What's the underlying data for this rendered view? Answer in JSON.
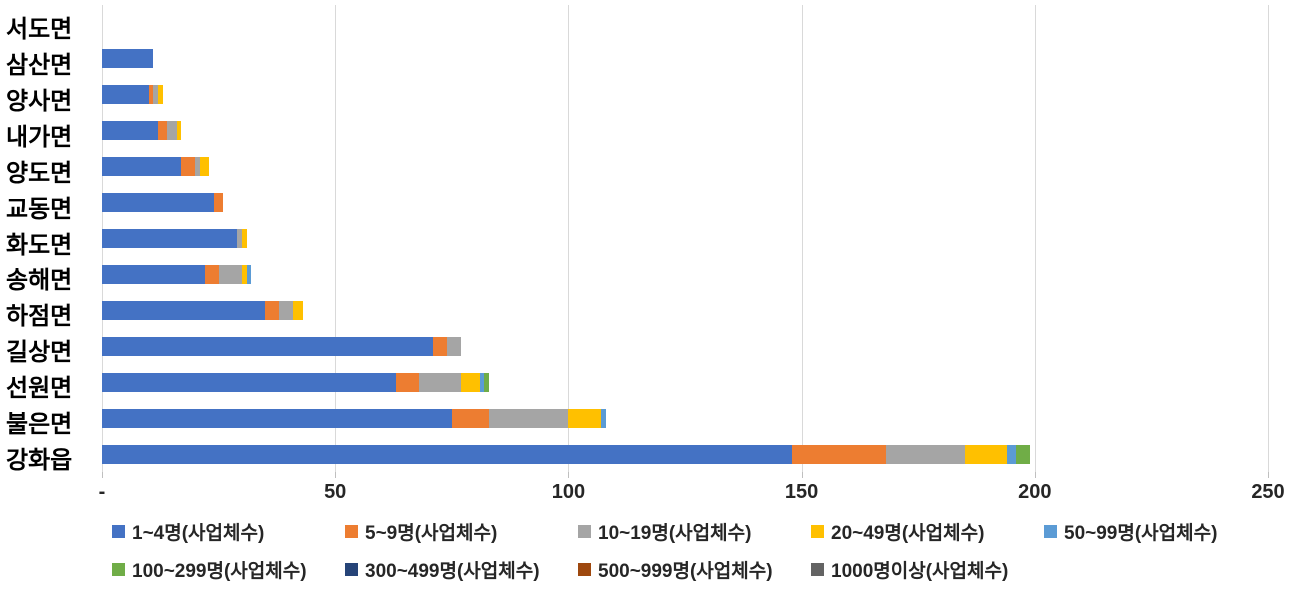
{
  "chart_data": {
    "type": "bar",
    "orientation": "horizontal",
    "stacked": true,
    "title": "",
    "xlabel": "",
    "ylabel": "",
    "grid": true,
    "legend_position": "bottom",
    "categories_top_to_bottom": [
      "서도면",
      "삼산면",
      "양사면",
      "내가면",
      "양도면",
      "교동면",
      "화도면",
      "송해면",
      "하점면",
      "길상면",
      "선원면",
      "불은면",
      "강화읍"
    ],
    "series": [
      {
        "name": "1~4명(사업체수)",
        "color": "#4472C4",
        "values": [
          0,
          11,
          10,
          12,
          17,
          24,
          29,
          22,
          35,
          71,
          63,
          75,
          148
        ]
      },
      {
        "name": "5~9명(사업체수)",
        "color": "#ED7D31",
        "values": [
          0,
          0,
          1,
          2,
          3,
          2,
          0,
          3,
          3,
          3,
          5,
          8,
          20
        ]
      },
      {
        "name": "10~19명(사업체수)",
        "color": "#A5A5A5",
        "values": [
          0,
          0,
          1,
          2,
          1,
          0,
          1,
          5,
          3,
          3,
          9,
          17,
          17
        ]
      },
      {
        "name": "20~49명(사업체수)",
        "color": "#FFC000",
        "values": [
          0,
          0,
          1,
          1,
          2,
          0,
          1,
          1,
          2,
          0,
          4,
          7,
          9
        ]
      },
      {
        "name": "50~99명(사업체수)",
        "color": "#5B9BD5",
        "values": [
          0,
          0,
          0,
          0,
          0,
          0,
          0,
          1,
          0,
          0,
          1,
          1,
          2
        ]
      },
      {
        "name": "100~299명(사업체수)",
        "color": "#70AD47",
        "values": [
          0,
          0,
          0,
          0,
          0,
          0,
          0,
          0,
          0,
          0,
          1,
          0,
          3
        ]
      },
      {
        "name": "300~499명(사업체수)",
        "color": "#264478",
        "values": [
          0,
          0,
          0,
          0,
          0,
          0,
          0,
          0,
          0,
          0,
          0,
          0,
          0
        ]
      },
      {
        "name": "500~999명(사업체수)",
        "color": "#9E480E",
        "values": [
          0,
          0,
          0,
          0,
          0,
          0,
          0,
          0,
          0,
          0,
          0,
          0,
          0
        ]
      },
      {
        "name": "1000명이상(사업체수)",
        "color": "#636363",
        "values": [
          0,
          0,
          0,
          0,
          0,
          0,
          0,
          0,
          0,
          0,
          0,
          0,
          0
        ]
      }
    ],
    "category_totals": [
      0,
      11,
      13,
      17,
      23,
      26,
      31,
      32,
      43,
      77,
      83,
      108,
      199
    ],
    "x_axis": {
      "tick_labels": [
        "-",
        "50",
        "100",
        "150",
        "200",
        "250"
      ],
      "tick_values": [
        0,
        50,
        100,
        150,
        200,
        250
      ],
      "min": 0,
      "max": 250,
      "tick_step": 50
    },
    "colors": {
      "gridline": "#d9d9d9",
      "tick": "#bfbfbf",
      "label_text": "#000000",
      "axis_text": "#262626"
    }
  }
}
